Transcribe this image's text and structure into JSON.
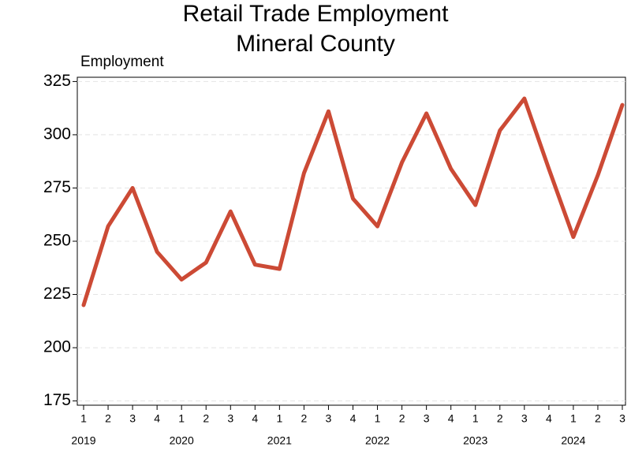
{
  "chart_data": {
    "type": "line",
    "title": "Retail Trade Employment",
    "subtitle": "Mineral County",
    "y_label": "Employment",
    "categories": [
      "1",
      "2",
      "3",
      "4",
      "1",
      "2",
      "3",
      "4",
      "1",
      "2",
      "3",
      "4",
      "1",
      "2",
      "3",
      "4",
      "1",
      "2",
      "3",
      "4",
      "1",
      "2",
      "3"
    ],
    "category_groups": [
      "2019",
      null,
      null,
      null,
      "2020",
      null,
      null,
      null,
      "2021",
      null,
      null,
      null,
      "2022",
      null,
      null,
      null,
      "2023",
      null,
      null,
      null,
      "2024",
      null,
      null
    ],
    "series": [
      {
        "name": "Employment",
        "color": "#cc4a35",
        "values": [
          220,
          257,
          275,
          245,
          232,
          240,
          264,
          239,
          237,
          282,
          311,
          270,
          257,
          287,
          310,
          284,
          267,
          302,
          317,
          284,
          252,
          281,
          314
        ]
      }
    ],
    "ylim": [
      173,
      327
    ],
    "yticks": [
      175,
      200,
      225,
      250,
      275,
      300,
      325
    ],
    "grid": true
  }
}
